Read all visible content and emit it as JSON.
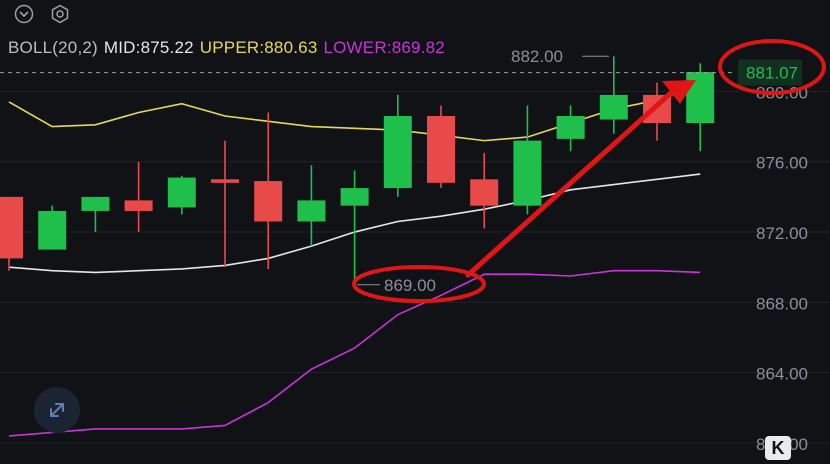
{
  "indicator": {
    "name": "BOLL(20,2)",
    "mid": "MID:875.22",
    "upper": "UPPER:880.63",
    "lower": "LOWER:869.82"
  },
  "controls": {
    "collapse_icon": "chevron-down-circle-icon",
    "settings_icon": "hexagon-gear-icon",
    "expand_icon": "expand-arrows-icon",
    "k_label": "K"
  },
  "colors": {
    "background": "#101216",
    "up": "#1fbf4c",
    "down": "#e84a4a",
    "upper_band": "#e8d85a",
    "mid_band": "#e6e6e6",
    "lower_band": "#c934d9",
    "annotation": "#e01616",
    "axis_text": "#8a8f98"
  },
  "chart_data": {
    "type": "candlestick",
    "y_axis": {
      "ticks": [
        "880.00",
        "876.00",
        "872.00",
        "868.00",
        "864.00",
        "860.00"
      ],
      "range": [
        860,
        884
      ]
    },
    "candles": [
      {
        "open": 874.0,
        "high": 874.0,
        "low": 869.8,
        "close": 870.5
      },
      {
        "open": 871.0,
        "high": 873.5,
        "low": 871.0,
        "close": 873.2
      },
      {
        "open": 873.2,
        "high": 874.0,
        "low": 872.0,
        "close": 874.0
      },
      {
        "open": 873.8,
        "high": 876.0,
        "low": 872.0,
        "close": 873.2
      },
      {
        "open": 873.4,
        "high": 875.2,
        "low": 873.0,
        "close": 875.1
      },
      {
        "open": 875.0,
        "high": 877.2,
        "low": 870.0,
        "close": 874.8
      },
      {
        "open": 874.9,
        "high": 878.8,
        "low": 869.9,
        "close": 872.6
      },
      {
        "open": 872.6,
        "high": 875.8,
        "low": 871.2,
        "close": 873.8
      },
      {
        "open": 873.5,
        "high": 875.5,
        "low": 869.0,
        "close": 874.5
      },
      {
        "open": 874.5,
        "high": 879.8,
        "low": 874.0,
        "close": 878.6
      },
      {
        "open": 878.6,
        "high": 879.2,
        "low": 874.5,
        "close": 874.8
      },
      {
        "open": 875.0,
        "high": 876.5,
        "low": 872.2,
        "close": 873.5
      },
      {
        "open": 873.5,
        "high": 879.2,
        "low": 873.0,
        "close": 877.2
      },
      {
        "open": 877.3,
        "high": 879.2,
        "low": 876.6,
        "close": 878.6
      },
      {
        "open": 878.4,
        "high": 882.0,
        "low": 877.6,
        "close": 879.8
      },
      {
        "open": 879.8,
        "high": 880.5,
        "low": 877.2,
        "close": 878.2
      },
      {
        "open": 878.2,
        "high": 881.6,
        "low": 876.6,
        "close": 881.1
      }
    ],
    "upper_band": [
      879.4,
      878.0,
      878.1,
      878.8,
      879.3,
      878.6,
      878.3,
      878.0,
      877.9,
      877.8,
      877.5,
      877.2,
      877.4,
      878.2,
      879.0,
      879.5,
      880.4
    ],
    "mid_band": [
      870.0,
      869.8,
      869.7,
      869.8,
      869.9,
      870.1,
      870.5,
      871.2,
      872.0,
      872.6,
      872.9,
      873.3,
      873.8,
      874.4,
      874.7,
      875.0,
      875.3
    ],
    "lower_band": [
      860.4,
      860.6,
      860.8,
      860.8,
      860.8,
      861.0,
      862.3,
      864.2,
      865.4,
      867.3,
      868.4,
      869.6,
      869.6,
      869.5,
      869.8,
      869.8,
      869.7
    ],
    "annotations": {
      "high_label": "882.00",
      "low_label": "869.00",
      "last_price": "881.07"
    }
  }
}
